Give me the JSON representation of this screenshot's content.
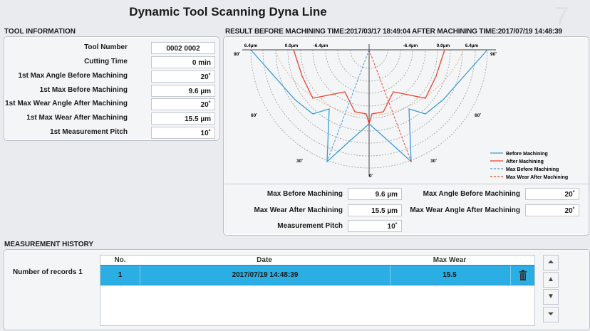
{
  "app": {
    "title": "Dynamic Tool Scanning Dyna Line"
  },
  "tool_info": {
    "title": "TOOL INFORMATION",
    "fields": [
      {
        "label": "Tool Number",
        "value": "0002 0002"
      },
      {
        "label": "Cutting Time",
        "value": "0 min"
      },
      {
        "label": "1st Max Angle Before Machining",
        "value": "20˚"
      },
      {
        "label": "1st Max Before Machining",
        "value": "9.6 µm"
      },
      {
        "label": "1st Max Wear Angle After Machining",
        "value": "20˚"
      },
      {
        "label": "1st Max Wear After Machining",
        "value": "15.5 µm"
      },
      {
        "label": "1st Measurement Pitch",
        "value": "10˚"
      }
    ]
  },
  "result": {
    "title": "RESULT BEFORE MACHINING TIME:2017/03/17 18:49:04  AFTER MACHINING TIME:2017/07/19 14:48:39",
    "scale_labels": {
      "left_outer": "6.4µm",
      "left_mid": "0.0µm",
      "left_inner": "-6.4µm",
      "right_inner": "-6.4µm",
      "right_mid": "0.0µm",
      "right_outer": "6.4µm"
    },
    "angle_labels": {
      "a90l": "90˚",
      "a90r": "90˚",
      "a60l": "60˚",
      "a60r": "60˚",
      "a30l": "30˚",
      "a30r": "30˚",
      "a0": "0˚"
    },
    "legend": [
      {
        "label": "Before Machining",
        "color": "#3c9bd6",
        "style": "solid"
      },
      {
        "label": "After Machining",
        "color": "#e8432e",
        "style": "solid"
      },
      {
        "label": "Max Before Machining",
        "color": "#3c9bd6",
        "style": "dashed"
      },
      {
        "label": "Max Wear After Machining",
        "color": "#e8432e",
        "style": "dashed"
      }
    ],
    "summary": {
      "max_before_label": "Max Before Machining",
      "max_before_value": "9.6 µm",
      "max_angle_before_label": "Max Angle Before Machining",
      "max_angle_before_value": "20˚",
      "max_wear_after_label": "Max Wear After Machining",
      "max_wear_after_value": "15.5 µm",
      "max_wear_angle_after_label": "Max Wear Angle After Machining",
      "max_wear_angle_after_value": "20˚",
      "pitch_label": "Measurement Pitch",
      "pitch_value": "10˚"
    }
  },
  "history": {
    "title": "MEASUREMENT HISTORY",
    "record_count": "Number of records 1",
    "columns": [
      "No.",
      "Date",
      "Max Wear"
    ],
    "rows": [
      {
        "no": "1",
        "date": "2017/07/19 14:48:39",
        "max_wear": "15.5"
      }
    ],
    "selected_color": "#2aaee4"
  },
  "icons": {
    "delete": "trash-icon",
    "first": "skip-top-icon",
    "up": "arrow-up-icon",
    "down": "arrow-down-icon",
    "last": "skip-bottom-icon"
  }
}
